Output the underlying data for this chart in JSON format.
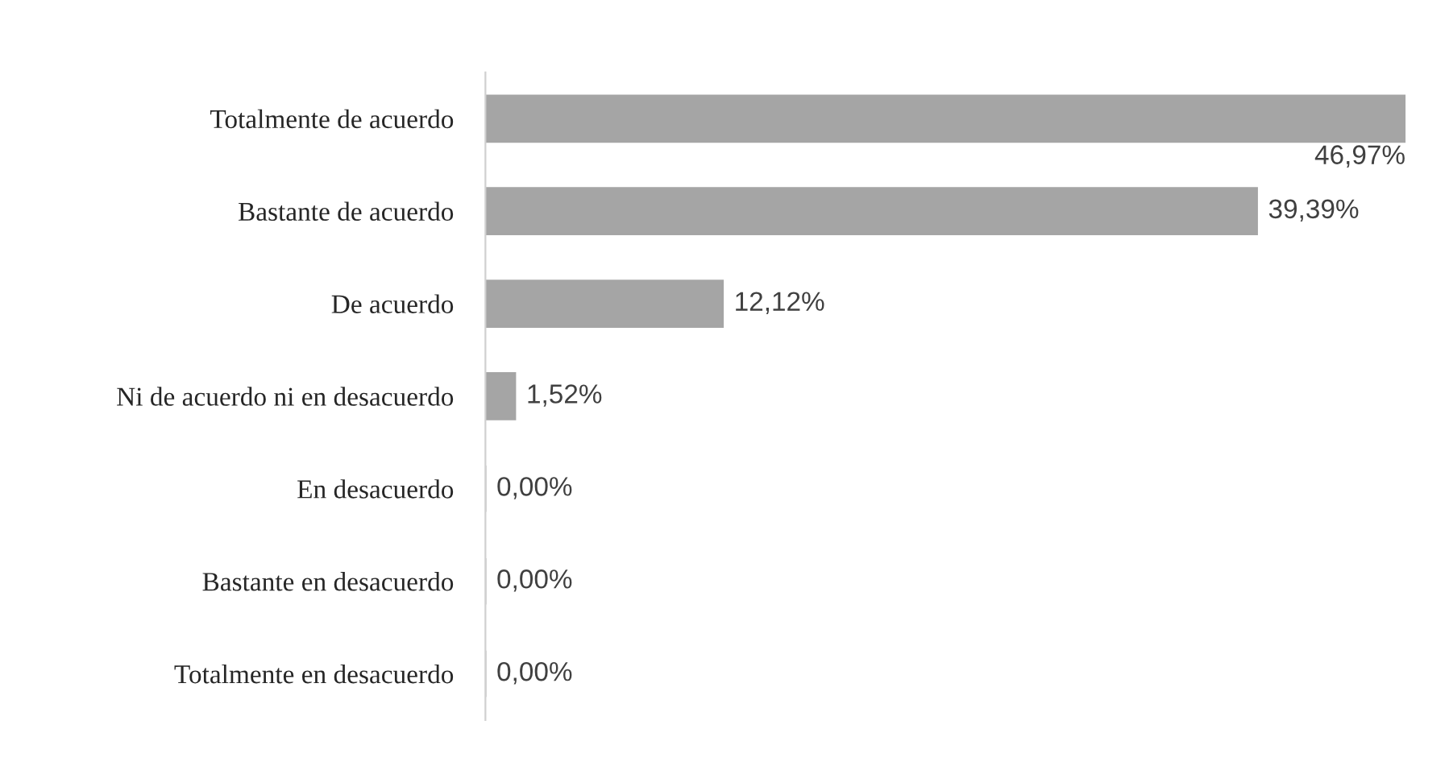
{
  "chart_data": {
    "type": "bar",
    "orientation": "horizontal",
    "categories": [
      "Totalmente de acuerdo",
      "Bastante de acuerdo",
      "De acuerdo",
      "Ni de acuerdo ni en desacuerdo",
      "En desacuerdo",
      "Bastante en desacuerdo",
      "Totalmente en desacuerdo"
    ],
    "values": [
      46.97,
      39.39,
      12.12,
      1.52,
      0.0,
      0.0,
      0.0
    ],
    "value_labels": [
      "46,97%",
      "39,39%",
      "12,12%",
      "1,52%",
      "0,00%",
      "0,00%",
      "0,00%"
    ],
    "color": "#a5a5a5",
    "tick_labels": "y",
    "grid": false,
    "legend": false
  }
}
